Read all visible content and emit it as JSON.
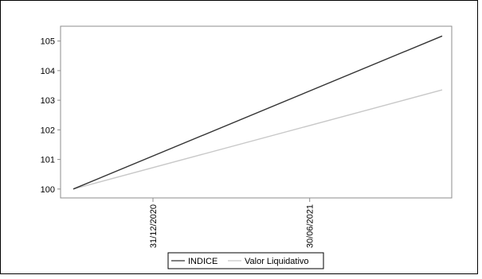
{
  "chart_data": {
    "type": "line",
    "x": [
      "2020-09-30",
      "2021-11-30"
    ],
    "x_ticks": [
      "31/12/2020",
      "30/06/2021"
    ],
    "y_ticks": [
      100,
      101,
      102,
      103,
      104,
      105
    ],
    "ylim": [
      99.7,
      105.5
    ],
    "series": [
      {
        "name": "INDICE",
        "values": [
          100.0,
          105.17
        ],
        "color": "#333333"
      },
      {
        "name": "Valor Liquidativo",
        "values": [
          100.0,
          103.35
        ],
        "color": "#c8c8c8"
      }
    ],
    "legend": "bottom-center",
    "grid": false
  }
}
